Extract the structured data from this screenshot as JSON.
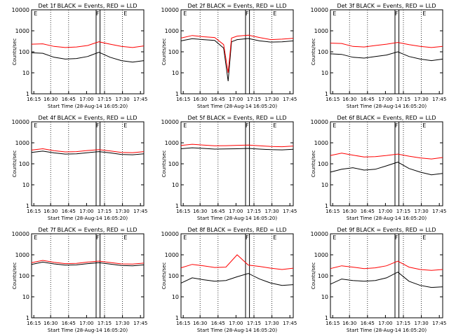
{
  "figure": {
    "xlabel": "Start Time (28-Aug-14 16:05:20)",
    "ylabel": "Counts/sec",
    "x_tick_labels": [
      "16:15",
      "16:30",
      "16:45",
      "17:00",
      "17:15",
      "17:30",
      "17:45"
    ],
    "y_tick_labels": [
      "1",
      "10",
      "100",
      "1000",
      "10000"
    ],
    "marker_labels": [
      "E",
      "F",
      "E"
    ],
    "colors": {
      "events": "#000000",
      "lld": "#ff0000",
      "axes": "#000000"
    },
    "scale": "log"
  },
  "chart_data": [
    {
      "type": "line",
      "title": "Det 1f BLACK = Events, RED = LLD",
      "x_minutes": [
        0,
        10,
        20,
        30,
        40,
        50,
        60,
        70,
        80,
        90,
        100
      ],
      "ylim": [
        1,
        10000
      ],
      "xlim": [
        0,
        100
      ],
      "series": [
        {
          "label": "Events",
          "color": "#000000",
          "values": [
            90,
            85,
            55,
            45,
            48,
            60,
            95,
            55,
            38,
            32,
            38
          ]
        },
        {
          "label": "LLD",
          "color": "#ff0000",
          "values": [
            230,
            240,
            180,
            160,
            170,
            200,
            300,
            230,
            180,
            160,
            190
          ]
        }
      ]
    },
    {
      "type": "line",
      "title": "Det 2f BLACK = Events, RED = LLD",
      "x_minutes": [
        0,
        10,
        20,
        30,
        38,
        42,
        45,
        50,
        60,
        70,
        80,
        90,
        100
      ],
      "ylim": [
        1,
        10000
      ],
      "xlim": [
        0,
        100
      ],
      "series": [
        {
          "label": "Events",
          "color": "#000000",
          "values": [
            330,
            420,
            380,
            350,
            150,
            4,
            300,
            380,
            430,
            330,
            290,
            300,
            330
          ]
        },
        {
          "label": "LLD",
          "color": "#ff0000",
          "values": [
            450,
            600,
            520,
            480,
            220,
            10,
            450,
            560,
            620,
            480,
            380,
            400,
            440
          ]
        }
      ]
    },
    {
      "type": "line",
      "title": "Det 3f BLACK = Events, RED = LLD",
      "x_minutes": [
        0,
        10,
        20,
        30,
        40,
        50,
        60,
        70,
        80,
        90,
        100
      ],
      "ylim": [
        1,
        10000
      ],
      "xlim": [
        0,
        100
      ],
      "series": [
        {
          "label": "Events",
          "color": "#000000",
          "values": [
            80,
            75,
            55,
            50,
            60,
            70,
            100,
            60,
            45,
            38,
            45
          ]
        },
        {
          "label": "LLD",
          "color": "#ff0000",
          "values": [
            260,
            250,
            180,
            170,
            200,
            230,
            280,
            220,
            180,
            160,
            180
          ]
        }
      ]
    },
    {
      "type": "line",
      "title": "Det 4f BLACK = Events, RED = LLD",
      "x_minutes": [
        0,
        10,
        20,
        30,
        40,
        50,
        60,
        70,
        80,
        90,
        100
      ],
      "ylim": [
        1,
        10000
      ],
      "xlim": [
        0,
        100
      ],
      "series": [
        {
          "label": "Events",
          "color": "#000000",
          "values": [
            350,
            400,
            330,
            290,
            300,
            340,
            380,
            330,
            280,
            270,
            300
          ]
        },
        {
          "label": "LLD",
          "color": "#ff0000",
          "values": [
            450,
            520,
            420,
            370,
            380,
            430,
            470,
            410,
            350,
            340,
            380
          ]
        }
      ]
    },
    {
      "type": "line",
      "title": "Det 5f BLACK = Events, RED = LLD",
      "x_minutes": [
        0,
        10,
        20,
        30,
        40,
        50,
        60,
        70,
        80,
        90,
        100
      ],
      "ylim": [
        1,
        10000
      ],
      "xlim": [
        0,
        100
      ],
      "series": [
        {
          "label": "Events",
          "color": "#000000",
          "values": [
            520,
            580,
            540,
            500,
            510,
            520,
            540,
            500,
            470,
            460,
            490
          ]
        },
        {
          "label": "LLD",
          "color": "#ff0000",
          "values": [
            750,
            850,
            780,
            720,
            730,
            760,
            780,
            720,
            670,
            650,
            700
          ]
        }
      ]
    },
    {
      "type": "line",
      "title": "Det 6f BLACK = Events, RED = LLD",
      "x_minutes": [
        0,
        10,
        20,
        30,
        40,
        50,
        60,
        70,
        80,
        90,
        100
      ],
      "ylim": [
        1,
        10000
      ],
      "xlim": [
        0,
        100
      ],
      "series": [
        {
          "label": "Events",
          "color": "#000000",
          "values": [
            40,
            55,
            65,
            50,
            55,
            80,
            120,
            60,
            40,
            30,
            35
          ]
        },
        {
          "label": "LLD",
          "color": "#ff0000",
          "values": [
            250,
            320,
            260,
            210,
            220,
            250,
            290,
            230,
            190,
            170,
            200
          ]
        }
      ]
    },
    {
      "type": "line",
      "title": "Det 7f BLACK = Events, RED = LLD",
      "x_minutes": [
        0,
        10,
        20,
        30,
        40,
        50,
        60,
        70,
        80,
        90,
        100
      ],
      "ylim": [
        1,
        10000
      ],
      "xlim": [
        0,
        100
      ],
      "series": [
        {
          "label": "Events",
          "color": "#000000",
          "values": [
            350,
            450,
            370,
            320,
            330,
            380,
            420,
            360,
            310,
            300,
            330
          ]
        },
        {
          "label": "LLD",
          "color": "#ff0000",
          "values": [
            420,
            540,
            440,
            380,
            390,
            450,
            500,
            430,
            370,
            360,
            400
          ]
        }
      ]
    },
    {
      "type": "line",
      "title": "Det 8f BLACK = Events, RED = LLD",
      "x_minutes": [
        0,
        10,
        20,
        30,
        40,
        50,
        60,
        70,
        80,
        90,
        100
      ],
      "ylim": [
        1,
        10000
      ],
      "xlim": [
        0,
        100
      ],
      "series": [
        {
          "label": "Events",
          "color": "#000000",
          "values": [
            45,
            80,
            65,
            55,
            60,
            90,
            130,
            70,
            45,
            35,
            38
          ]
        },
        {
          "label": "LLD",
          "color": "#ff0000",
          "values": [
            240,
            350,
            300,
            250,
            260,
            1000,
            320,
            280,
            230,
            200,
            230
          ]
        }
      ]
    },
    {
      "type": "line",
      "title": "Det 9f BLACK = Events, RED = LLD",
      "x_minutes": [
        0,
        10,
        20,
        30,
        40,
        50,
        60,
        70,
        80,
        90,
        100
      ],
      "ylim": [
        1,
        10000
      ],
      "xlim": [
        0,
        100
      ],
      "series": [
        {
          "label": "Events",
          "color": "#000000",
          "values": [
            40,
            70,
            60,
            55,
            60,
            80,
            150,
            55,
            35,
            28,
            30
          ]
        },
        {
          "label": "LLD",
          "color": "#ff0000",
          "values": [
            220,
            300,
            260,
            220,
            240,
            300,
            500,
            260,
            200,
            180,
            200
          ]
        }
      ]
    }
  ]
}
